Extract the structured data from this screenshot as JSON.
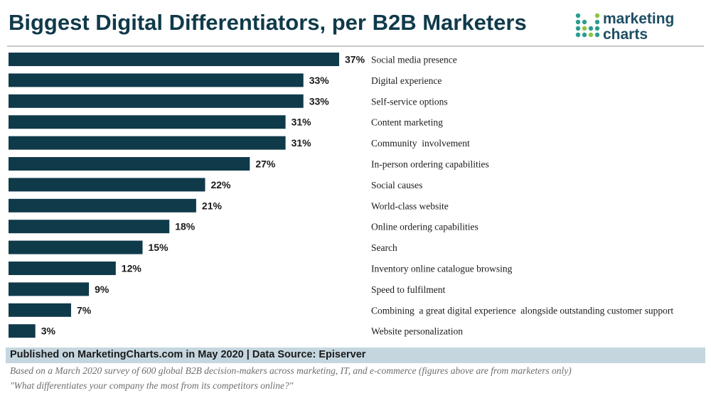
{
  "header": {
    "title": "Biggest Digital Differentiators, per B2B Marketers",
    "logo_line1": "marketing",
    "logo_line2": "charts"
  },
  "colors": {
    "bar": "#0f3a4a",
    "title": "#0f3a4a",
    "footer_band": "#c5d6df",
    "logo_teal": "#2a9d8f",
    "logo_green": "#8cc63f"
  },
  "chart_data": {
    "type": "bar",
    "orientation": "horizontal",
    "categories": [
      "Social media presence",
      "Digital experience",
      "Self-service options",
      "Content marketing",
      "Community  involvement",
      "In-person ordering capabilities",
      "Social causes",
      "World-class website",
      "Online ordering capabilities",
      "Search",
      "Inventory online catalogue browsing",
      "Speed to fulfilment",
      "Combining  a great digital experience  alongside outstanding customer support",
      "Website personalization"
    ],
    "values": [
      37,
      33,
      33,
      31,
      31,
      27,
      22,
      21,
      18,
      15,
      12,
      9,
      7,
      3
    ],
    "value_labels": [
      "37%",
      "33%",
      "33%",
      "31%",
      "31%",
      "27%",
      "22%",
      "21%",
      "18%",
      "15%",
      "12%",
      "9%",
      "7%",
      "3%"
    ],
    "unit": "%",
    "xlim": [
      0,
      37
    ],
    "grid": false,
    "legend": "none"
  },
  "footer": {
    "published": "Published on MarketingCharts.com in May 2020 | Data Source: Episerver",
    "note1": "Based on a March 2020 survey of 600 global B2B decision-makers across marketing, IT, and e-commerce (figures above are from marketers only)",
    "note2": "\"What differentiates your company the most from its competitors online?\""
  }
}
